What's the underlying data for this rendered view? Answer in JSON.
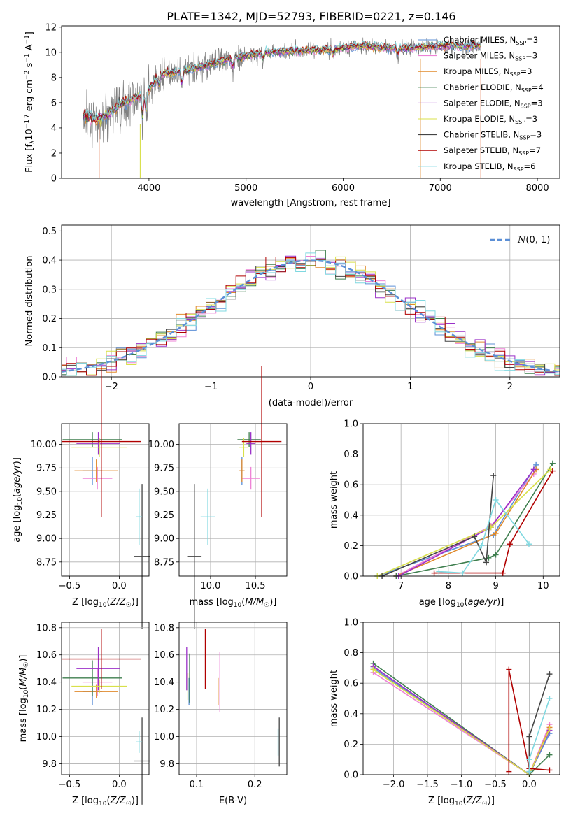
{
  "figure": {
    "title": "PLATE=1342, MJD=52793, FIBERID=0221, z=0.146"
  },
  "series_legend": [
    {
      "label": "Chabrier MILES, N",
      "sub": "SSP",
      "tail": "=3",
      "color": "#5b8fd6"
    },
    {
      "label": "Salpeter MILES, N",
      "sub": "SSP",
      "tail": "=3",
      "color": "#ee82d6"
    },
    {
      "label": "Kroupa MILES, N",
      "sub": "SSP",
      "tail": "=3",
      "color": "#e08a2c"
    },
    {
      "label": "Chabrier ELODIE, N",
      "sub": "SSP",
      "tail": "=4",
      "color": "#3f7f4f"
    },
    {
      "label": "Salpeter ELODIE, N",
      "sub": "SSP",
      "tail": "=3",
      "color": "#9b30c8"
    },
    {
      "label": "Kroupa ELODIE, N",
      "sub": "SSP",
      "tail": "=3",
      "color": "#d8e04a"
    },
    {
      "label": "Chabrier STELIB, N",
      "sub": "SSP",
      "tail": "=3",
      "color": "#444444"
    },
    {
      "label": "Salpeter STELIB, N",
      "sub": "SSP",
      "tail": "=7",
      "color": "#b00000"
    },
    {
      "label": "Kroupa STELIB, N",
      "sub": "SSP",
      "tail": "=6",
      "color": "#7fd8e0"
    }
  ],
  "chart_data": [
    {
      "id": "spectrum",
      "type": "line",
      "xlabel": "wavelength [Angstrom, rest frame]",
      "ylabel": "Flux [fλ10⁻¹⁷ erg cm⁻² s⁻¹ A⁻¹]",
      "xlim": [
        3100,
        8230
      ],
      "ylim": [
        0,
        12.1
      ],
      "xticks": [
        4000,
        5000,
        6000,
        7000,
        8000
      ],
      "yticks": [
        0,
        2,
        4,
        6,
        8,
        10,
        12
      ],
      "data_color": "#808080",
      "data_range": [
        3320,
        7420
      ],
      "model_continuum": [
        [
          3320,
          4.9
        ],
        [
          3500,
          4.7
        ],
        [
          3700,
          5.8
        ],
        [
          3900,
          6.5
        ],
        [
          4000,
          7.0
        ],
        [
          4100,
          8.2
        ],
        [
          4400,
          8.6
        ],
        [
          4800,
          9.4
        ],
        [
          5200,
          10.0
        ],
        [
          5500,
          10.1
        ],
        [
          5800,
          10.2
        ],
        [
          6200,
          10.5
        ],
        [
          6600,
          10.3
        ],
        [
          7000,
          10.5
        ],
        [
          7400,
          10.5
        ]
      ],
      "grid": false,
      "legend": "top-right"
    },
    {
      "id": "residuals",
      "type": "histogram",
      "xlabel": "(data-model)/error",
      "ylabel": "Normed distribution",
      "xlim": [
        -2.5,
        2.5
      ],
      "ylim": [
        0,
        0.52
      ],
      "xticks": [
        -2,
        -1,
        0,
        1,
        2
      ],
      "yticks": [
        0.0,
        0.1,
        0.2,
        0.3,
        0.4,
        0.5
      ],
      "bin_width": 0.1,
      "reference": {
        "label": "N(0, 1)",
        "color": "#5b8fd6"
      },
      "grid": true,
      "legend": "top-right"
    },
    {
      "id": "age-vs-Z",
      "type": "errorbar",
      "xlabel": "Z [log₁₀(Z/Z☉)]",
      "ylabel": "age  [log₁₀(age/yr)]",
      "xlim": [
        -0.58,
        0.3
      ],
      "ylim": [
        8.6,
        10.22
      ],
      "xticks": [
        -0.5,
        0.0
      ],
      "yticks": [
        8.75,
        9.0,
        9.25,
        9.5,
        9.75,
        10.0
      ],
      "points": [
        {
          "x": -0.27,
          "y": 9.72,
          "xerr": 0.1,
          "yerr": 0.15,
          "color": "#5b8fd6"
        },
        {
          "x": -0.22,
          "y": 9.64,
          "xerr": 0.15,
          "yerr": 0.12,
          "color": "#ee82d6"
        },
        {
          "x": -0.23,
          "y": 9.72,
          "xerr": 0.22,
          "yerr": 0.12,
          "color": "#e08a2c"
        },
        {
          "x": -0.27,
          "y": 10.05,
          "xerr": 0.3,
          "yerr": 0.08,
          "color": "#3f7f4f"
        },
        {
          "x": -0.21,
          "y": 10.01,
          "xerr": 0.22,
          "yerr": 0.12,
          "color": "#9b30c8"
        },
        {
          "x": -0.2,
          "y": 9.97,
          "xerr": 0.28,
          "yerr": 0.1,
          "color": "#d8e04a"
        },
        {
          "x": 0.23,
          "y": 8.81,
          "xerr": 0.08,
          "yerr": 0.77,
          "color": "#444444"
        },
        {
          "x": -0.18,
          "y": 10.03,
          "xerr": 0.4,
          "yerr": 0.8,
          "color": "#b00000"
        },
        {
          "x": 0.2,
          "y": 9.23,
          "xerr": 0.03,
          "yerr": 0.3,
          "color": "#7fd8e0"
        }
      ]
    },
    {
      "id": "age-vs-mass",
      "type": "errorbar",
      "xlabel": "mass [log₁₀(M/M☉)]",
      "ylabel": "",
      "xlim": [
        9.65,
        10.85
      ],
      "ylim": [
        8.6,
        10.22
      ],
      "xticks": [
        10.0,
        10.5
      ],
      "yticks": [
        8.75,
        9.0,
        9.25,
        9.5,
        9.75,
        10.0
      ],
      "points": [
        {
          "x": 10.35,
          "y": 9.72,
          "xerr": 0.02,
          "yerr": 0.15,
          "color": "#5b8fd6"
        },
        {
          "x": 10.45,
          "y": 9.64,
          "xerr": 0.1,
          "yerr": 0.12,
          "color": "#ee82d6"
        },
        {
          "x": 10.35,
          "y": 9.72,
          "xerr": 0.03,
          "yerr": 0.12,
          "color": "#e08a2c"
        },
        {
          "x": 10.43,
          "y": 10.05,
          "xerr": 0.13,
          "yerr": 0.08,
          "color": "#3f7f4f"
        },
        {
          "x": 10.45,
          "y": 10.01,
          "xerr": 0.05,
          "yerr": 0.12,
          "color": "#9b30c8"
        },
        {
          "x": 10.37,
          "y": 9.97,
          "xerr": 0.05,
          "yerr": 0.1,
          "color": "#d8e04a"
        },
        {
          "x": 9.82,
          "y": 8.81,
          "xerr": 0.08,
          "yerr": 0.77,
          "color": "#444444"
        },
        {
          "x": 10.57,
          "y": 10.03,
          "xerr": 0.22,
          "yerr": 0.8,
          "color": "#b00000"
        },
        {
          "x": 9.97,
          "y": 9.23,
          "xerr": 0.08,
          "yerr": 0.3,
          "color": "#7fd8e0"
        }
      ]
    },
    {
      "id": "weight-vs-age",
      "type": "line",
      "xlabel": "age  [log₁₀(age/yr)]",
      "ylabel": "mass weight",
      "xlim": [
        6.2,
        10.35
      ],
      "ylim": [
        0,
        1.0
      ],
      "xticks": [
        7,
        8,
        9,
        10
      ],
      "yticks": [
        0.0,
        0.2,
        0.4,
        0.6,
        0.8,
        1.0
      ],
      "series": [
        {
          "color": "#5b8fd6",
          "x": [
            6.5,
            8.95,
            9.85
          ],
          "y": [
            0.0,
            0.27,
            0.73
          ]
        },
        {
          "color": "#ee82d6",
          "x": [
            6.9,
            8.9,
            9.8
          ],
          "y": [
            0.0,
            0.33,
            0.67
          ]
        },
        {
          "color": "#e08a2c",
          "x": [
            6.9,
            9.0,
            9.85
          ],
          "y": [
            0.0,
            0.28,
            0.7
          ]
        },
        {
          "color": "#3f7f4f",
          "x": [
            6.9,
            8.85,
            9.0,
            10.2
          ],
          "y": [
            0.0,
            0.12,
            0.14,
            0.74
          ]
        },
        {
          "color": "#9b30c8",
          "x": [
            6.95,
            8.9,
            9.8
          ],
          "y": [
            0.0,
            0.32,
            0.7
          ]
        },
        {
          "color": "#d8e04a",
          "x": [
            6.5,
            8.9,
            10.15
          ],
          "y": [
            0.0,
            0.32,
            0.7
          ]
        },
        {
          "color": "#444444",
          "x": [
            6.6,
            8.55,
            8.8,
            8.95
          ],
          "y": [
            0.0,
            0.26,
            0.09,
            0.66
          ]
        },
        {
          "color": "#b00000",
          "x": [
            7.7,
            9.15,
            9.3,
            10.2
          ],
          "y": [
            0.02,
            0.02,
            0.21,
            0.69
          ]
        },
        {
          "color": "#7fd8e0",
          "x": [
            7.8,
            8.3,
            8.7,
            9.0,
            9.7
          ],
          "y": [
            0.03,
            0.02,
            0.2,
            0.5,
            0.21
          ]
        }
      ]
    },
    {
      "id": "mass-vs-Z",
      "type": "errorbar",
      "xlabel": "Z [log₁₀(Z/Z☉)]",
      "ylabel": "mass [log₁₀(M/M☉)]",
      "xlim": [
        -0.58,
        0.3
      ],
      "ylim": [
        9.72,
        10.84
      ],
      "xticks": [
        -0.5,
        0.0
      ],
      "yticks": [
        9.8,
        10.0,
        10.2,
        10.4,
        10.6,
        10.8
      ],
      "points": [
        {
          "x": -0.27,
          "y": 10.33,
          "xerr": 0.1,
          "yerr": 0.1,
          "color": "#5b8fd6"
        },
        {
          "x": -0.22,
          "y": 10.4,
          "xerr": 0.15,
          "yerr": 0.1,
          "color": "#ee82d6"
        },
        {
          "x": -0.23,
          "y": 10.33,
          "xerr": 0.22,
          "yerr": 0.05,
          "color": "#e08a2c"
        },
        {
          "x": -0.27,
          "y": 10.43,
          "xerr": 0.3,
          "yerr": 0.13,
          "color": "#3f7f4f"
        },
        {
          "x": -0.21,
          "y": 10.5,
          "xerr": 0.22,
          "yerr": 0.16,
          "color": "#9b30c8"
        },
        {
          "x": -0.2,
          "y": 10.37,
          "xerr": 0.28,
          "yerr": 0.05,
          "color": "#d8e04a"
        },
        {
          "x": 0.23,
          "y": 9.82,
          "xerr": 0.08,
          "yerr": 0.32,
          "color": "#444444"
        },
        {
          "x": -0.18,
          "y": 10.57,
          "xerr": 0.4,
          "yerr": 0.22,
          "color": "#b00000"
        },
        {
          "x": 0.2,
          "y": 9.96,
          "xerr": 0.03,
          "yerr": 0.08,
          "color": "#7fd8e0"
        }
      ]
    },
    {
      "id": "mass-vs-ebv",
      "type": "errorbar",
      "xlabel": "E(B-V)",
      "ylabel": "",
      "xlim": [
        0.07,
        0.255
      ],
      "ylim": [
        9.72,
        10.84
      ],
      "xticks": [
        0.1,
        0.2
      ],
      "yticks": [
        9.8,
        10.0,
        10.2,
        10.4,
        10.6,
        10.8
      ],
      "points": [
        {
          "x": 0.087,
          "y": 10.33,
          "xerr": 0,
          "yerr": 0.1,
          "color": "#5b8fd6"
        },
        {
          "x": 0.14,
          "y": 10.4,
          "xerr": 0,
          "yerr": 0.22,
          "color": "#ee82d6"
        },
        {
          "x": 0.137,
          "y": 10.33,
          "xerr": 0,
          "yerr": 0.1,
          "color": "#e08a2c"
        },
        {
          "x": 0.088,
          "y": 10.43,
          "xerr": 0,
          "yerr": 0.18,
          "color": "#3f7f4f"
        },
        {
          "x": 0.083,
          "y": 10.5,
          "xerr": 0,
          "yerr": 0.16,
          "color": "#9b30c8"
        },
        {
          "x": 0.085,
          "y": 10.37,
          "xerr": 0,
          "yerr": 0.1,
          "color": "#d8e04a"
        },
        {
          "x": 0.242,
          "y": 9.96,
          "xerr": 0,
          "yerr": 0.18,
          "color": "#444444"
        },
        {
          "x": 0.115,
          "y": 10.57,
          "xerr": 0,
          "yerr": 0.22,
          "color": "#b00000"
        },
        {
          "x": 0.24,
          "y": 9.96,
          "xerr": 0,
          "yerr": 0.1,
          "color": "#7fd8e0"
        }
      ]
    },
    {
      "id": "weight-vs-Z",
      "type": "line",
      "xlabel": "Z [log₁₀(Z/Z☉)]",
      "ylabel": "mass weight",
      "xlim": [
        -2.45,
        0.45
      ],
      "ylim": [
        0,
        1.0
      ],
      "xticks": [
        -2.0,
        -1.5,
        -1.0,
        -0.5,
        0.0
      ],
      "yticks": [
        0.0,
        0.2,
        0.4,
        0.6,
        0.8,
        1.0
      ],
      "series": [
        {
          "color": "#5b8fd6",
          "x": [
            -2.3,
            0.0,
            0.3
          ],
          "y": [
            0.7,
            0.0,
            0.27
          ]
        },
        {
          "color": "#ee82d6",
          "x": [
            -2.3,
            0.0,
            0.3
          ],
          "y": [
            0.67,
            0.0,
            0.33
          ]
        },
        {
          "color": "#e08a2c",
          "x": [
            -2.3,
            0.0,
            0.3
          ],
          "y": [
            0.69,
            0.0,
            0.31
          ]
        },
        {
          "color": "#3f7f4f",
          "x": [
            -2.3,
            0.0,
            0.3
          ],
          "y": [
            0.73,
            0.0,
            0.13
          ]
        },
        {
          "color": "#9b30c8",
          "x": [
            -2.3,
            0.0,
            0.3
          ],
          "y": [
            0.71,
            0.0,
            0.29
          ]
        },
        {
          "color": "#d8e04a",
          "x": [
            -2.3,
            0.0,
            0.3
          ],
          "y": [
            0.69,
            0.0,
            0.3
          ]
        },
        {
          "color": "#444444",
          "x": [
            0.0,
            0.0,
            0.3
          ],
          "y": [
            0.02,
            0.25,
            0.66
          ]
        },
        {
          "color": "#b00000",
          "x": [
            -0.3,
            -0.3,
            0.0,
            0.3
          ],
          "y": [
            0.02,
            0.69,
            0.04,
            0.03
          ]
        },
        {
          "color": "#7fd8e0",
          "x": [
            0.0,
            0.0,
            0.3
          ],
          "y": [
            0.02,
            0.1,
            0.5
          ]
        }
      ]
    }
  ]
}
